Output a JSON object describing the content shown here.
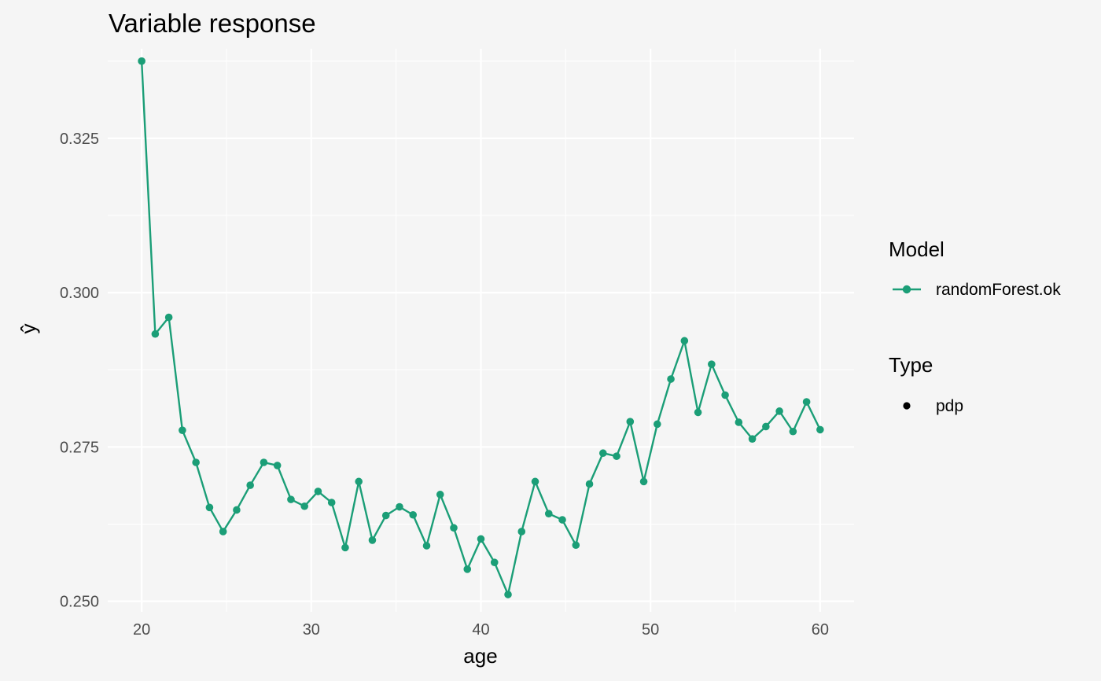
{
  "chart_data": {
    "type": "line",
    "title": "Variable response",
    "xlabel": "age",
    "ylabel": "ŷ",
    "xlim": [
      18,
      62
    ],
    "ylim": [
      0.2483,
      0.3395
    ],
    "x_ticks": [
      20,
      30,
      40,
      50,
      60
    ],
    "x_tick_labels": [
      "20",
      "30",
      "40",
      "50",
      "60"
    ],
    "y_ticks": [
      0.25,
      0.275,
      0.3,
      0.325
    ],
    "y_tick_labels": [
      "0.250",
      "0.275",
      "0.300",
      "0.325"
    ],
    "grid": true,
    "legend_position": "right",
    "series": [
      {
        "name": "randomForest.ok",
        "color": "#1b9e77",
        "markers": true,
        "x": [
          20,
          20.8,
          21.6,
          22.4,
          23.2,
          24.0,
          24.8,
          25.6,
          26.4,
          27.2,
          28.0,
          28.8,
          29.6,
          30.4,
          31.2,
          32.0,
          32.8,
          33.6,
          34.4,
          35.2,
          36.0,
          36.8,
          37.6,
          38.4,
          39.2,
          40.0,
          40.8,
          41.6,
          42.4,
          43.2,
          44.0,
          44.8,
          45.6,
          46.4,
          47.2,
          48.0,
          48.8,
          49.6,
          50.4,
          51.2,
          52.0,
          52.8,
          53.6,
          54.4,
          55.2,
          56.0,
          56.8,
          57.6,
          58.4,
          59.2,
          60.0
        ],
        "y": [
          0.3375,
          0.2933,
          0.296,
          0.2777,
          0.2725,
          0.2652,
          0.2613,
          0.2648,
          0.2688,
          0.2725,
          0.272,
          0.2665,
          0.2654,
          0.2678,
          0.266,
          0.2587,
          0.2694,
          0.2599,
          0.2639,
          0.2653,
          0.264,
          0.259,
          0.2673,
          0.2619,
          0.2552,
          0.2601,
          0.2563,
          0.2511,
          0.2613,
          0.2694,
          0.2642,
          0.2632,
          0.2591,
          0.269,
          0.274,
          0.2735,
          0.2791,
          0.2694,
          0.2787,
          0.286,
          0.2922,
          0.2806,
          0.2884,
          0.2834,
          0.279,
          0.2763,
          0.2783,
          0.2808,
          0.2775,
          0.2823,
          0.2778
        ]
      }
    ],
    "legend": {
      "model_title": "Model",
      "model_items": [
        {
          "label": "randomForest.ok",
          "color": "#1b9e77"
        }
      ],
      "type_title": "Type",
      "type_items": [
        {
          "label": "pdp",
          "color": "#000000"
        }
      ]
    }
  }
}
